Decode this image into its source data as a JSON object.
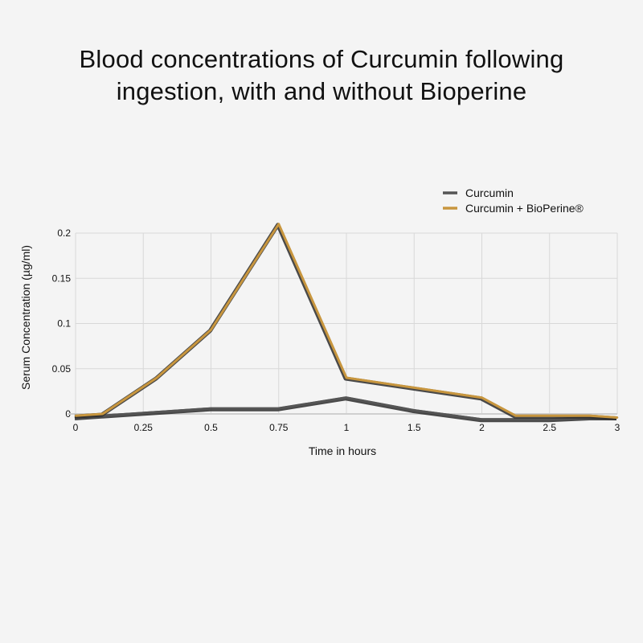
{
  "title_lines": [
    "Blood concentrations of Curcumin following",
    "ingestion, with and without Bioperine"
  ],
  "chart_data": {
    "type": "line",
    "xlabel": "Time in hours",
    "ylabel": "Serum Concentration (µg/ml)",
    "x_tick_labels": [
      "0",
      "0.25",
      "0.5",
      "0.75",
      "1",
      "1.5",
      "2",
      "2.5",
      "3"
    ],
    "y_tick_labels": [
      "0",
      "0.05",
      "0.1",
      "0.15",
      "0.2"
    ],
    "ylim": [
      0,
      0.2
    ],
    "grid": true,
    "legend_position": "top-right",
    "series": [
      {
        "name": "Curcumin",
        "color": "#555555",
        "points": [
          [
            0,
            -0.004
          ],
          [
            0.2,
            0.0
          ],
          [
            0.5,
            0.006
          ],
          [
            0.75,
            0.006
          ],
          [
            1,
            0.018
          ],
          [
            1.5,
            0.004
          ],
          [
            2,
            -0.006
          ],
          [
            2.5,
            -0.006
          ],
          [
            2.8,
            -0.004
          ],
          [
            3,
            -0.004
          ]
        ]
      },
      {
        "name": "Curcumin + BioPerine®",
        "color": "#c8963e",
        "points": [
          [
            0,
            -0.002
          ],
          [
            0.1,
            0.0
          ],
          [
            0.2,
            0.02
          ],
          [
            0.3,
            0.04
          ],
          [
            0.5,
            0.093
          ],
          [
            0.75,
            0.21
          ],
          [
            1,
            0.04
          ],
          [
            1.5,
            0.029
          ],
          [
            2,
            0.018
          ],
          [
            2.25,
            -0.002
          ],
          [
            2.5,
            -0.002
          ],
          [
            2.8,
            -0.002
          ],
          [
            3,
            -0.004
          ]
        ]
      }
    ]
  }
}
